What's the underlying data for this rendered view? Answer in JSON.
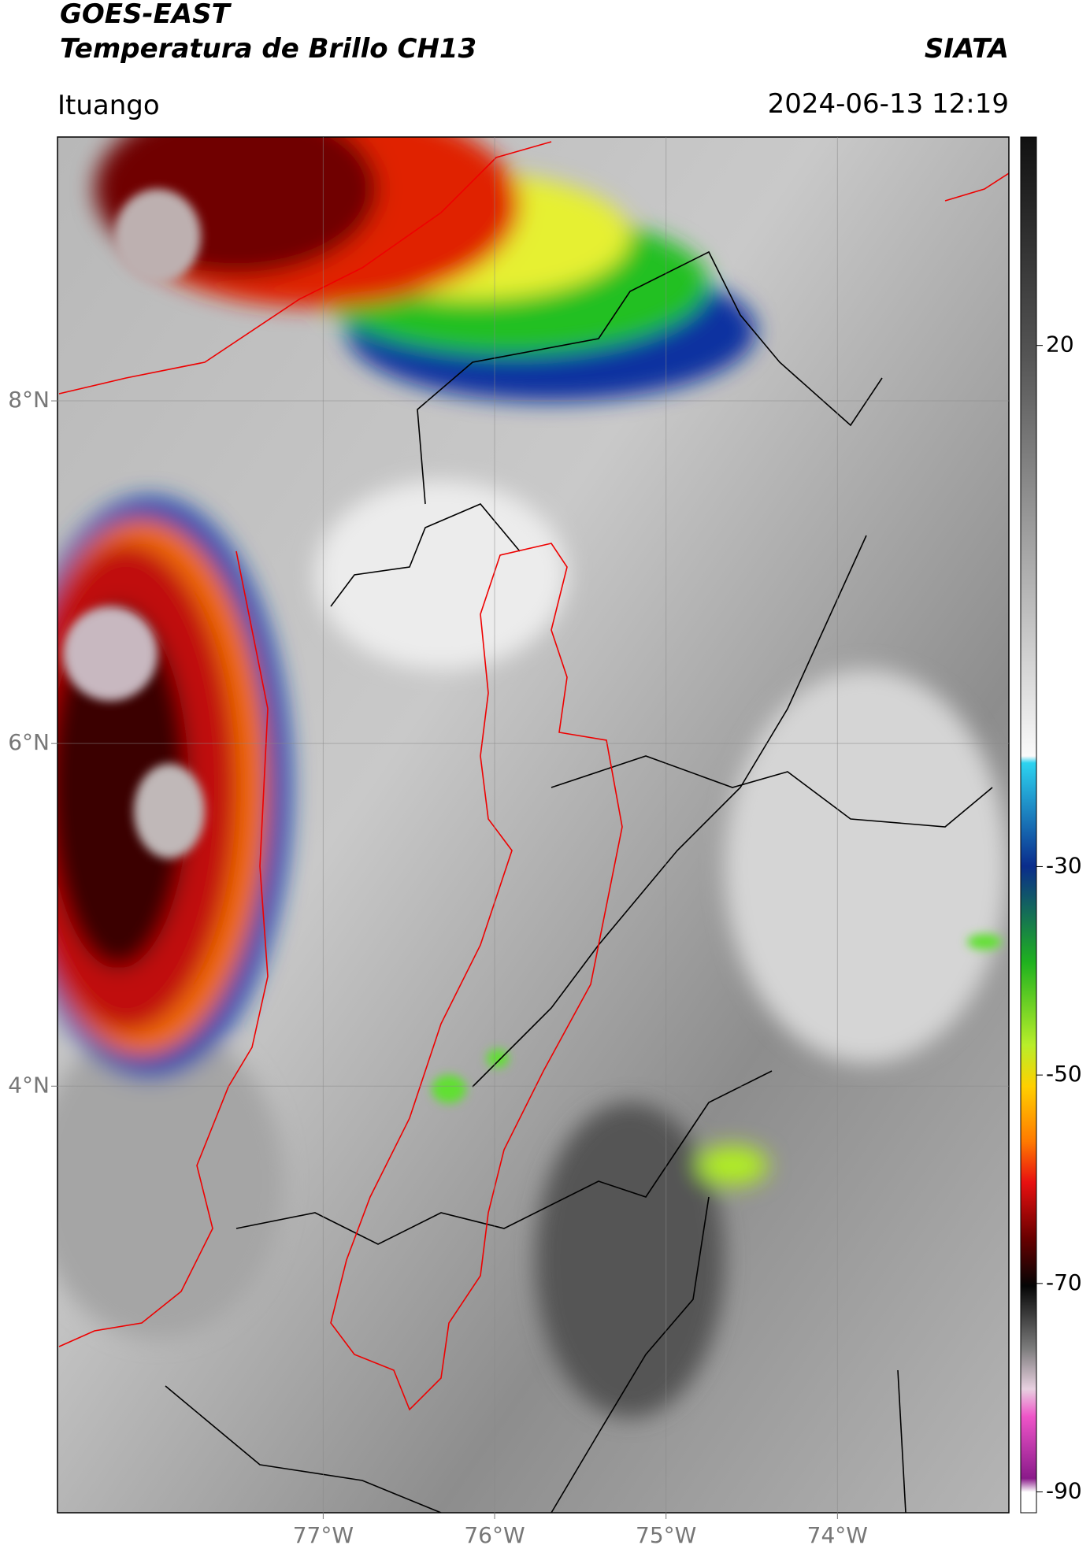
{
  "header": {
    "satellite": "GOES-EAST",
    "product": "Temperatura de Brillo CH13",
    "source": "SIATA",
    "location": "Ituango",
    "datetime": "2024-06-13 12:19"
  },
  "map": {
    "xlim": [
      -78.55,
      -73.0
    ],
    "ylim": [
      1.51,
      9.54
    ],
    "xticks": [
      {
        "value": -77,
        "label": "77°W"
      },
      {
        "value": -76,
        "label": "76°W"
      },
      {
        "value": -75,
        "label": "75°W"
      },
      {
        "value": -74,
        "label": "74°W"
      }
    ],
    "yticks": [
      {
        "value": 4,
        "label": "4°N"
      },
      {
        "value": 6,
        "label": "6°N"
      },
      {
        "value": 8,
        "label": "8°N"
      }
    ],
    "grid": true
  },
  "colorbar": {
    "lim": [
      -92,
      40
    ],
    "ticks": [
      20,
      -30,
      -50,
      -70,
      -90
    ]
  }
}
